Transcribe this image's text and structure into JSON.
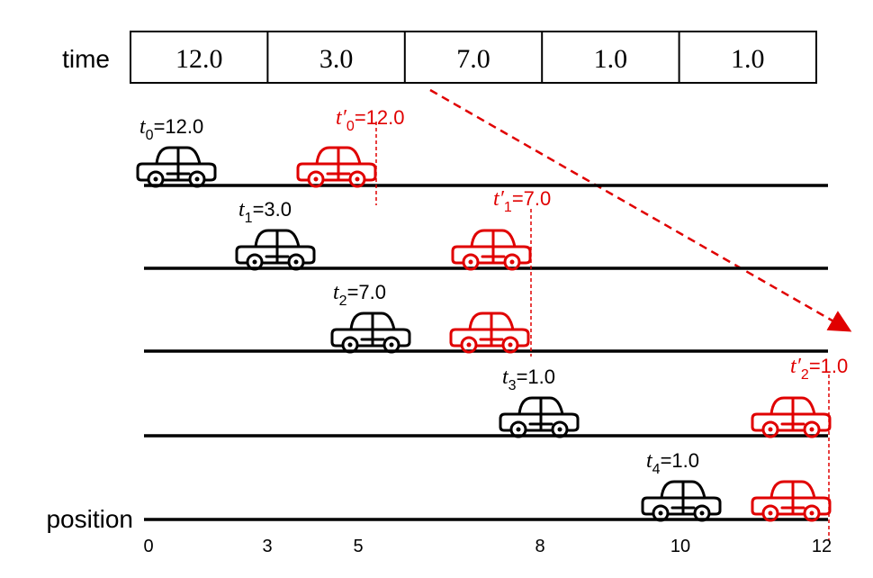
{
  "header": {
    "label": "time"
  },
  "table": {
    "cells": [
      "12.0",
      "3.0",
      "7.0",
      "1.0",
      "1.0"
    ]
  },
  "cars": [
    {
      "label": {
        "var": "t",
        "sub": "0",
        "rest": "=12.0"
      }
    },
    {
      "label": {
        "var": "t",
        "sub": "1",
        "rest": "=3.0"
      }
    },
    {
      "label": {
        "var": "t",
        "sub": "2",
        "rest": "=7.0"
      }
    },
    {
      "label": {
        "var": "t",
        "sub": "3",
        "rest": "=1.0"
      }
    },
    {
      "label": {
        "var": "t",
        "sub": "4",
        "rest": "=1.0"
      }
    }
  ],
  "moved": [
    {
      "label": {
        "var": "t′",
        "sub": "0",
        "rest": "=12.0"
      }
    },
    {
      "label": {
        "var": "t′",
        "sub": "1",
        "rest": "=7.0"
      }
    },
    {
      "label": {
        "var": "t′",
        "sub": "2",
        "rest": "=1.0"
      }
    }
  ],
  "axis": {
    "label": "position",
    "ticks": [
      0,
      3,
      5,
      8,
      10,
      12
    ]
  }
}
